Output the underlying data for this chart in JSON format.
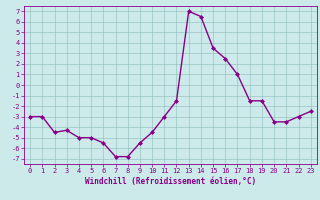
{
  "x": [
    0,
    1,
    2,
    3,
    4,
    5,
    6,
    7,
    8,
    9,
    10,
    11,
    12,
    13,
    14,
    15,
    16,
    17,
    18,
    19,
    20,
    21,
    22,
    23
  ],
  "y": [
    -3,
    -3,
    -4.5,
    -4.3,
    -5,
    -5,
    -5.5,
    -6.8,
    -6.8,
    -5.5,
    -4.5,
    -3,
    -1.5,
    7,
    6.5,
    3.5,
    2.5,
    1,
    -1.5,
    -1.5,
    -3.5,
    -3.5,
    -3,
    -2.5
  ],
  "line_color": "#880088",
  "marker": "D",
  "marker_size": 2,
  "xlabel": "Windchill (Refroidissement éolien,°C)",
  "xlabel_fontsize": 5.5,
  "ylim": [
    -7.5,
    7.5
  ],
  "xlim": [
    -0.5,
    23.5
  ],
  "yticks": [
    -7,
    -6,
    -5,
    -4,
    -3,
    -2,
    -1,
    0,
    1,
    2,
    3,
    4,
    5,
    6,
    7
  ],
  "xticks": [
    0,
    1,
    2,
    3,
    4,
    5,
    6,
    7,
    8,
    9,
    10,
    11,
    12,
    13,
    14,
    15,
    16,
    17,
    18,
    19,
    20,
    21,
    22,
    23
  ],
  "grid_color": "#8fbbbb",
  "bg_color": "#cceaea",
  "tick_color": "#880088",
  "tick_fontsize": 5,
  "line_width": 1.0
}
